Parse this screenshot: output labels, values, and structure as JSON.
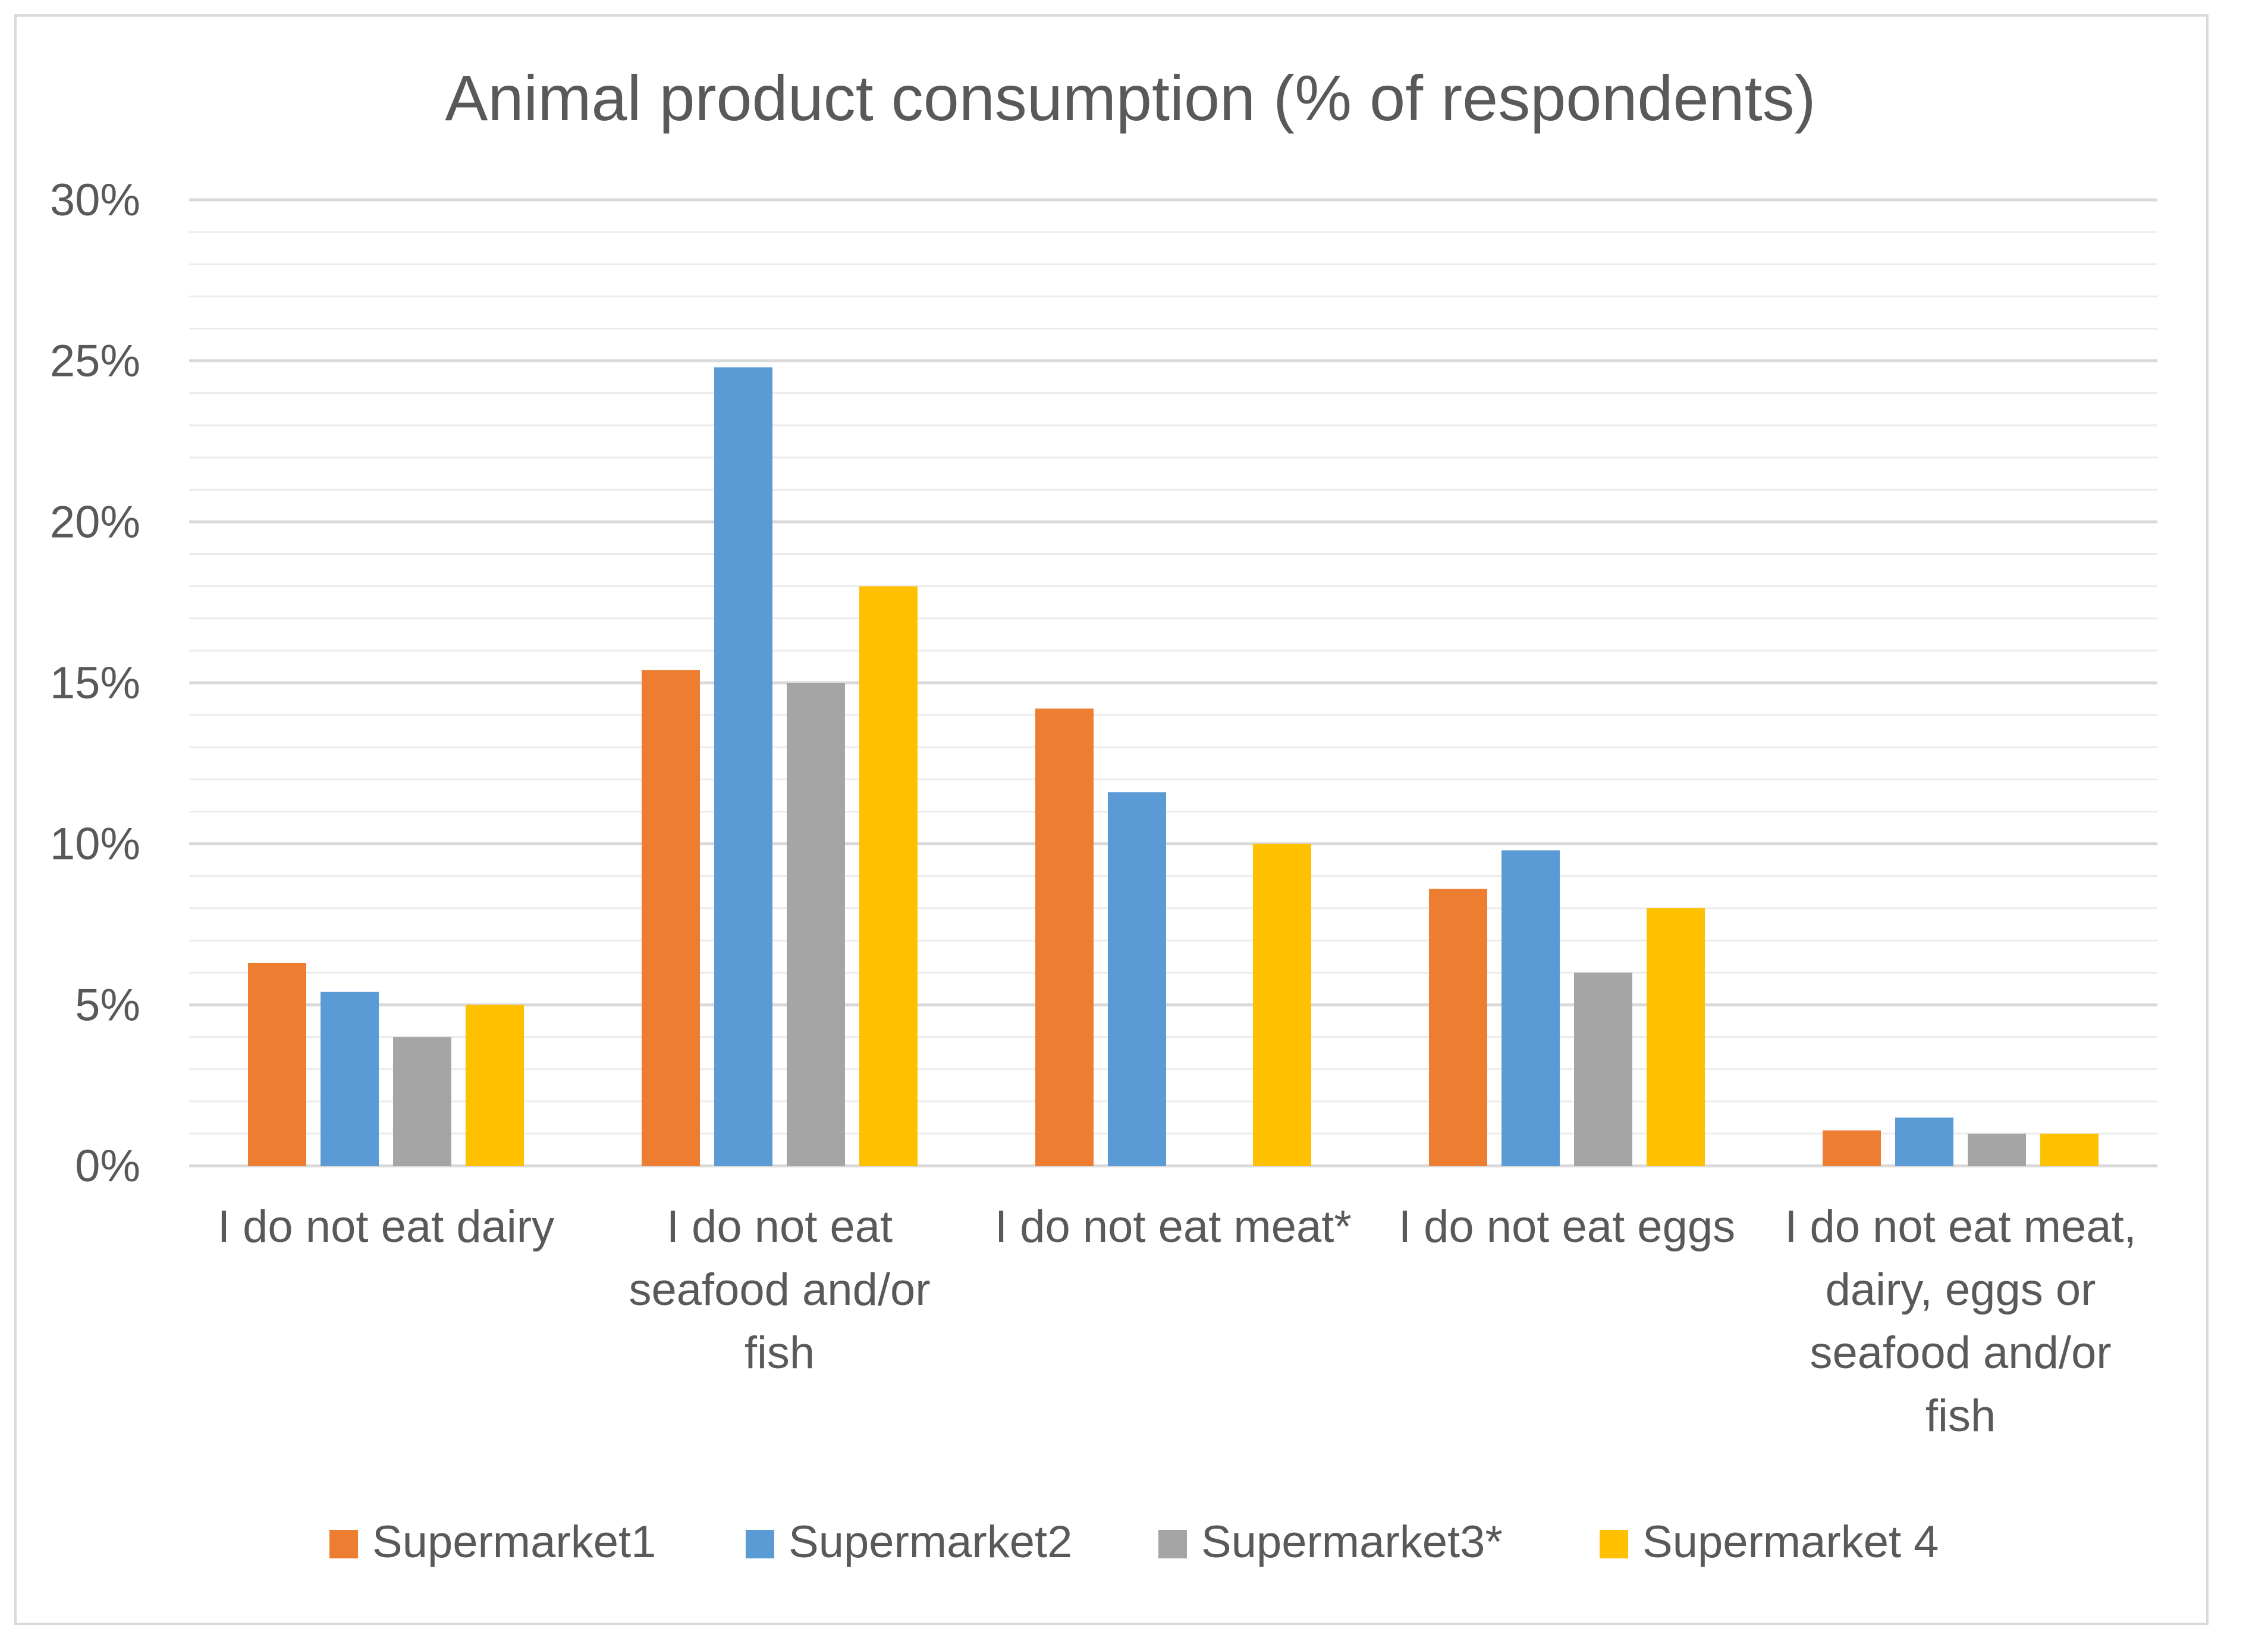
{
  "chart_data": {
    "type": "bar",
    "title": "Animal product consumption (% of respondents)",
    "xlabel": "",
    "ylabel": "",
    "ylim": [
      0,
      30
    ],
    "yticks": [
      "0%",
      "5%",
      "10%",
      "15%",
      "20%",
      "25%",
      "30%"
    ],
    "ytick_values": [
      0,
      5,
      10,
      15,
      20,
      25,
      30
    ],
    "minor_gridline_step": 1,
    "categories": [
      [
        "I do not eat dairy"
      ],
      [
        "I do not eat",
        "seafood and/or",
        "fish"
      ],
      [
        "I do not eat meat*"
      ],
      [
        "I do not eat eggs"
      ],
      [
        "I do not eat meat,",
        "dairy, eggs or",
        "seafood and/or",
        "fish"
      ]
    ],
    "series": [
      {
        "name": "Supermarket1",
        "color": "#ed7d31",
        "values": [
          6.3,
          15.4,
          14.2,
          8.6,
          1.1
        ]
      },
      {
        "name": "Supermarket2",
        "color": "#5b9bd5",
        "values": [
          5.4,
          24.8,
          11.6,
          9.8,
          1.5
        ]
      },
      {
        "name": "Supermarket3*",
        "color": "#a5a5a5",
        "values": [
          4.0,
          15.0,
          0,
          6.0,
          1.0
        ]
      },
      {
        "name": "Supermarket 4",
        "color": "#ffc000",
        "values": [
          5.0,
          18.0,
          10.0,
          8.0,
          1.0
        ]
      }
    ],
    "legend": "bottom",
    "grid": true
  }
}
